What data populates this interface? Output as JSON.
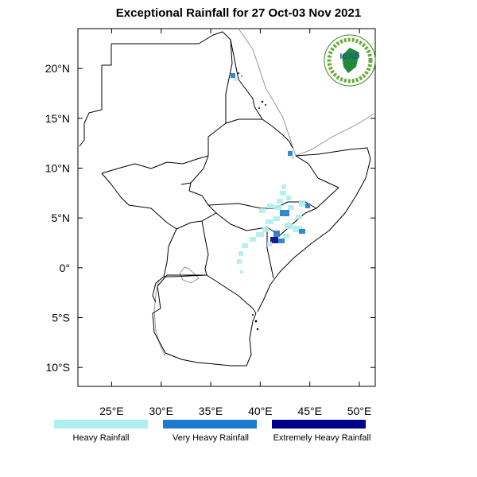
{
  "title": "Exceptional Rainfall for 27 Oct-03 Nov 2021",
  "logo": {
    "text": "IGAD",
    "icon": "igad-logo-icon"
  },
  "axes": {
    "lat_ticks": [
      {
        "value": 20,
        "label": "20°N"
      },
      {
        "value": 15,
        "label": "15°N"
      },
      {
        "value": 10,
        "label": "10°N"
      },
      {
        "value": 5,
        "label": "5°N"
      },
      {
        "value": 0,
        "label": "0°"
      },
      {
        "value": -5,
        "label": "5°S"
      },
      {
        "value": -10,
        "label": "10°S"
      }
    ],
    "lon_ticks": [
      {
        "value": 25,
        "label": "25°E"
      },
      {
        "value": 30,
        "label": "30°E"
      },
      {
        "value": 35,
        "label": "35°E"
      },
      {
        "value": 40,
        "label": "40°E"
      },
      {
        "value": 45,
        "label": "45°E"
      },
      {
        "value": 50,
        "label": "50°E"
      }
    ],
    "lon_range": [
      21.6,
      51.6
    ],
    "lat_range": [
      -11.9,
      24.0
    ]
  },
  "legend": [
    {
      "label": "Heavy Rainfall",
      "color": "#aeeeee"
    },
    {
      "label": "Very Heavy Rainfall",
      "color": "#1e7ad0"
    },
    {
      "label": "Extremely Heavy Rainfall",
      "color": "#00008b"
    }
  ]
}
